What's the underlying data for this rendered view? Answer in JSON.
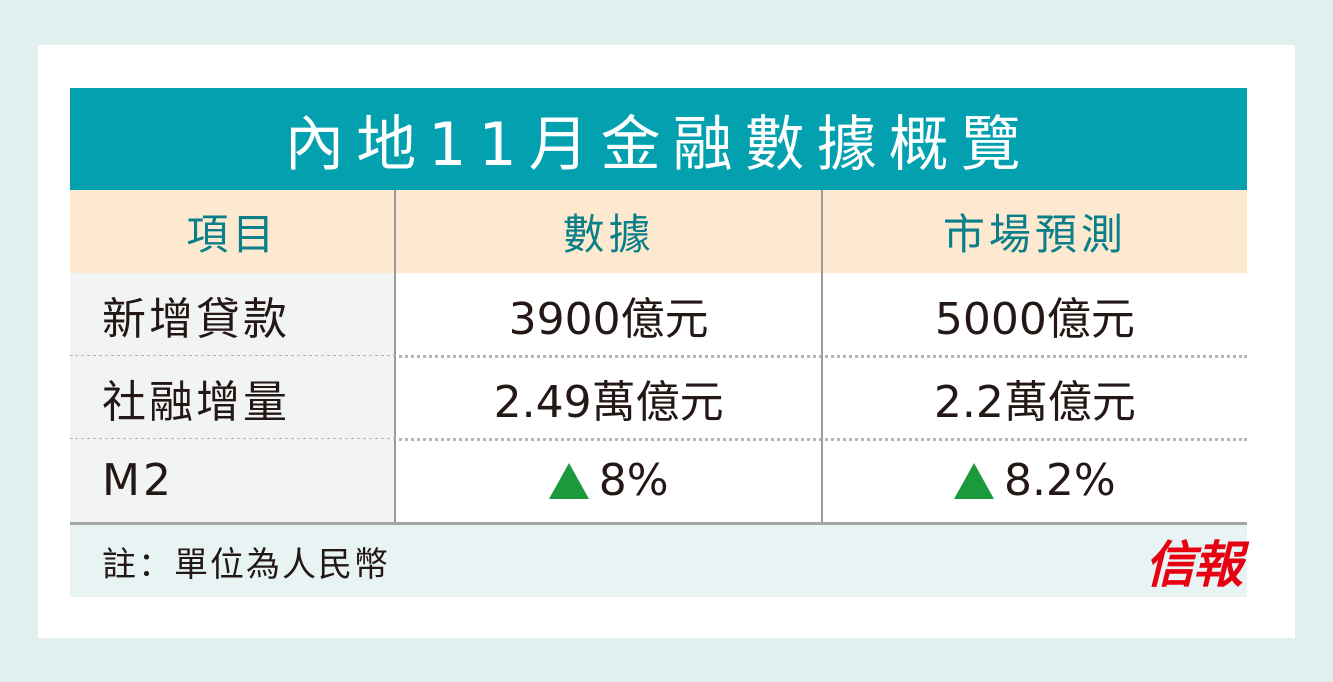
{
  "title": "內地11月金融數據概覽",
  "headers": [
    "項目",
    "數據",
    "市場預測"
  ],
  "rows": [
    {
      "item": "新增貸款",
      "data": "3900億元",
      "forecast": "5000億元"
    },
    {
      "item": "社融增量",
      "data": "2.49萬億元",
      "forecast": "2.2萬億元"
    },
    {
      "item": "M2",
      "data": "8%",
      "forecast": "8.2%",
      "data_icon": "up-triangle-icon",
      "forecast_icon": "up-triangle-icon"
    }
  ],
  "note": "註：單位為人民幣",
  "logo": "信報",
  "colors": {
    "title_bg": "#03a0b0",
    "header_bg": "#fde9cf",
    "header_text": "#0a7f8a",
    "up": "#1a9a3c",
    "logo": "#e60012"
  }
}
